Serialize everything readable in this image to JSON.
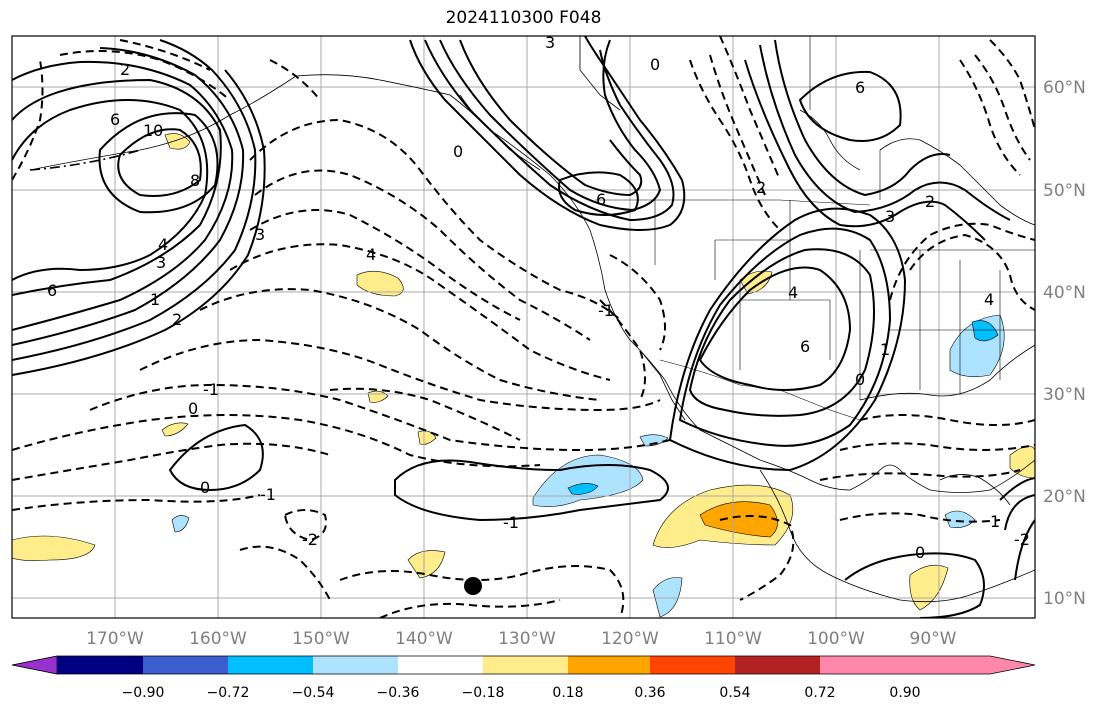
{
  "title": "2024110300 F048",
  "map": {
    "lon_labels": [
      "170°W",
      "160°W",
      "150°W",
      "140°W",
      "130°W",
      "120°W",
      "110°W",
      "100°W",
      "90°W"
    ],
    "lat_labels": [
      "60°N",
      "50°N",
      "40°N",
      "30°N",
      "20°N",
      "10°N"
    ],
    "contour_labels": [
      "10",
      "8",
      "6",
      "6",
      "4",
      "3",
      "2",
      "1",
      "0",
      "-1",
      "0",
      "-1",
      "-2",
      "4",
      "3",
      "2",
      "0",
      "-1",
      "6",
      "3",
      "2",
      "4",
      "6",
      "0",
      "1",
      "0",
      "2",
      "1",
      "-1",
      "-2",
      "0",
      "3",
      "6",
      "4"
    ]
  },
  "colorbar": {
    "ticks": [
      "−0.90",
      "−0.72",
      "−0.54",
      "−0.36",
      "−0.18",
      "0.18",
      "0.36",
      "0.54",
      "0.72",
      "0.90"
    ],
    "colors": [
      "#9932cc",
      "#000080",
      "#3a5fcd",
      "#00bfff",
      "#aee3ff",
      "#ffffff",
      "#ffec8b",
      "#ffa500",
      "#ff4500",
      "#b22222",
      "#ff88aa"
    ]
  }
}
